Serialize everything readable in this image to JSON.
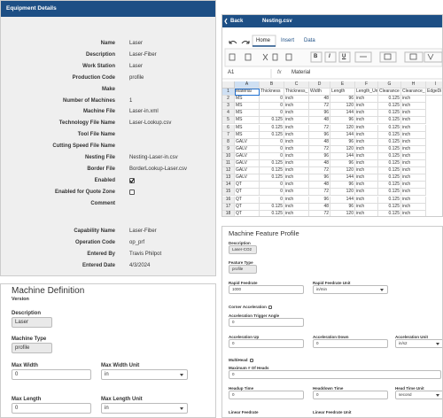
{
  "equipment_details": {
    "title": "Equipment Details",
    "rows": [
      {
        "label": "Name",
        "value": "Laser"
      },
      {
        "label": "Description",
        "value": "Laser-Fiber"
      },
      {
        "label": "Work Station",
        "value": "Laser"
      },
      {
        "label": "Production Code",
        "value": "profile"
      },
      {
        "label": "Make"
      },
      {
        "label": "Number of Machines",
        "value": "1"
      },
      {
        "label": "Machine File",
        "value": "Laser-in.xml"
      },
      {
        "label": "Technology File Name",
        "value": "Laser-Lookup.csv"
      },
      {
        "label": "Tool File Name"
      },
      {
        "label": "Cutting Speed File Name"
      },
      {
        "label": "Nesting File",
        "value": "Nesting-Laser-in.csv"
      },
      {
        "label": "Border File",
        "value": "BorderLookup-Laser.csv"
      },
      {
        "label": "Enabled",
        "checked": true
      },
      {
        "label": "Enabled for Quote Zone",
        "checked": false
      },
      {
        "label": "Comment"
      }
    ],
    "capability_rows": [
      {
        "label": "Capability Name",
        "value": "Laser-Fiber"
      },
      {
        "label": "Operation Code",
        "value": "op_prf"
      },
      {
        "label": "Entered By",
        "value": "Travis Philpot"
      },
      {
        "label": "Entered Date",
        "value": "4/3/2024"
      }
    ]
  },
  "spreadsheet": {
    "back": "Back",
    "file": "Nesting.csv",
    "tabs": [
      "Home",
      "Insert",
      "Data"
    ],
    "format_buttons": [
      "B",
      "I",
      "U"
    ],
    "cell_ref": "A1",
    "fx": "fx",
    "formula": "Material",
    "columns": [
      "A",
      "B",
      "C",
      "D",
      "E",
      "F",
      "G",
      "H",
      "I"
    ],
    "row_numbers": [
      "1",
      "2",
      "3",
      "4",
      "5",
      "6",
      "7",
      "8",
      "9",
      "10",
      "11",
      "12",
      "13",
      "14",
      "15",
      "16",
      "17",
      "18"
    ],
    "rows": [
      [
        "Material",
        "Thickness",
        "Thickness_",
        "Width",
        "Length",
        "Length_Un",
        "Clearance",
        "Clearance_",
        "EdgeDi"
      ],
      [
        "MS",
        "0",
        "inch",
        "48",
        "96",
        "inch",
        "0.125",
        "inch"
      ],
      [
        "MS",
        "0",
        "inch",
        "72",
        "120",
        "inch",
        "0.125",
        "inch"
      ],
      [
        "MS",
        "0",
        "inch",
        "96",
        "144",
        "inch",
        "0.125",
        "inch"
      ],
      [
        "MS",
        "0.125",
        "inch",
        "48",
        "96",
        "inch",
        "0.125",
        "inch"
      ],
      [
        "MS",
        "0.125",
        "inch",
        "72",
        "120",
        "inch",
        "0.125",
        "inch"
      ],
      [
        "MS",
        "0.125",
        "inch",
        "96",
        "144",
        "inch",
        "0.125",
        "inch"
      ],
      [
        "GALV",
        "0",
        "inch",
        "48",
        "96",
        "inch",
        "0.125",
        "inch"
      ],
      [
        "GALV",
        "0",
        "inch",
        "72",
        "120",
        "inch",
        "0.125",
        "inch"
      ],
      [
        "GALV",
        "0",
        "inch",
        "96",
        "144",
        "inch",
        "0.125",
        "inch"
      ],
      [
        "GALV",
        "0.125",
        "inch",
        "48",
        "96",
        "inch",
        "0.125",
        "inch"
      ],
      [
        "GALV",
        "0.125",
        "inch",
        "72",
        "120",
        "inch",
        "0.125",
        "inch"
      ],
      [
        "GALV",
        "0.125",
        "inch",
        "96",
        "144",
        "inch",
        "0.125",
        "inch"
      ],
      [
        "QT",
        "0",
        "inch",
        "48",
        "96",
        "inch",
        "0.125",
        "inch"
      ],
      [
        "QT",
        "0",
        "inch",
        "72",
        "120",
        "inch",
        "0.125",
        "inch"
      ],
      [
        "QT",
        "0",
        "inch",
        "96",
        "144",
        "inch",
        "0.125",
        "inch"
      ],
      [
        "QT",
        "0.125",
        "inch",
        "48",
        "96",
        "inch",
        "0.125",
        "inch"
      ],
      [
        "QT",
        "0.125",
        "inch",
        "72",
        "120",
        "inch",
        "0.125",
        "inch"
      ]
    ]
  },
  "machine_definition": {
    "title": "Machine Definition",
    "version": "Version",
    "fields": [
      {
        "label": "Description",
        "value": "Laser"
      },
      {
        "label": "Machine Type",
        "value": "profile"
      },
      {
        "label": "Max Width",
        "value": "0"
      },
      {
        "label": "Max Width Unit",
        "value": "in"
      },
      {
        "label": "Max Length",
        "value": "0"
      },
      {
        "label": "Max Length Unit",
        "value": "in"
      }
    ]
  },
  "feature_profile": {
    "title": "Machine Feature Profile",
    "fields": [
      {
        "label": "Description",
        "value": "Laser-CO2"
      },
      {
        "label": "Feature Type",
        "value": "profile"
      },
      {
        "label": "Rapid Feedrate",
        "value": "1000"
      },
      {
        "label": "Rapid Feedrate Unit",
        "value": "in/min"
      },
      {
        "label": "Corner Acceleration",
        "checked": false
      },
      {
        "label": "Acceleration Trigger Angle",
        "value": "0"
      },
      {
        "label": "Acceleration Up",
        "value": "0"
      },
      {
        "label": "Acceleration Down",
        "value": "0"
      },
      {
        "label": "Acceleration Unit",
        "value": "in/s2"
      },
      {
        "label": "MultiHead",
        "checked": false
      },
      {
        "label": "Maximum # Of Heads",
        "value": "0"
      },
      {
        "label": "Headup Time",
        "value": "0"
      },
      {
        "label": "Headdown Time",
        "value": "0"
      },
      {
        "label": "Head Time Unit",
        "value": "second"
      },
      {
        "label": "Linear Feedrate"
      },
      {
        "label": "Linear Feedrate Unit"
      }
    ]
  }
}
